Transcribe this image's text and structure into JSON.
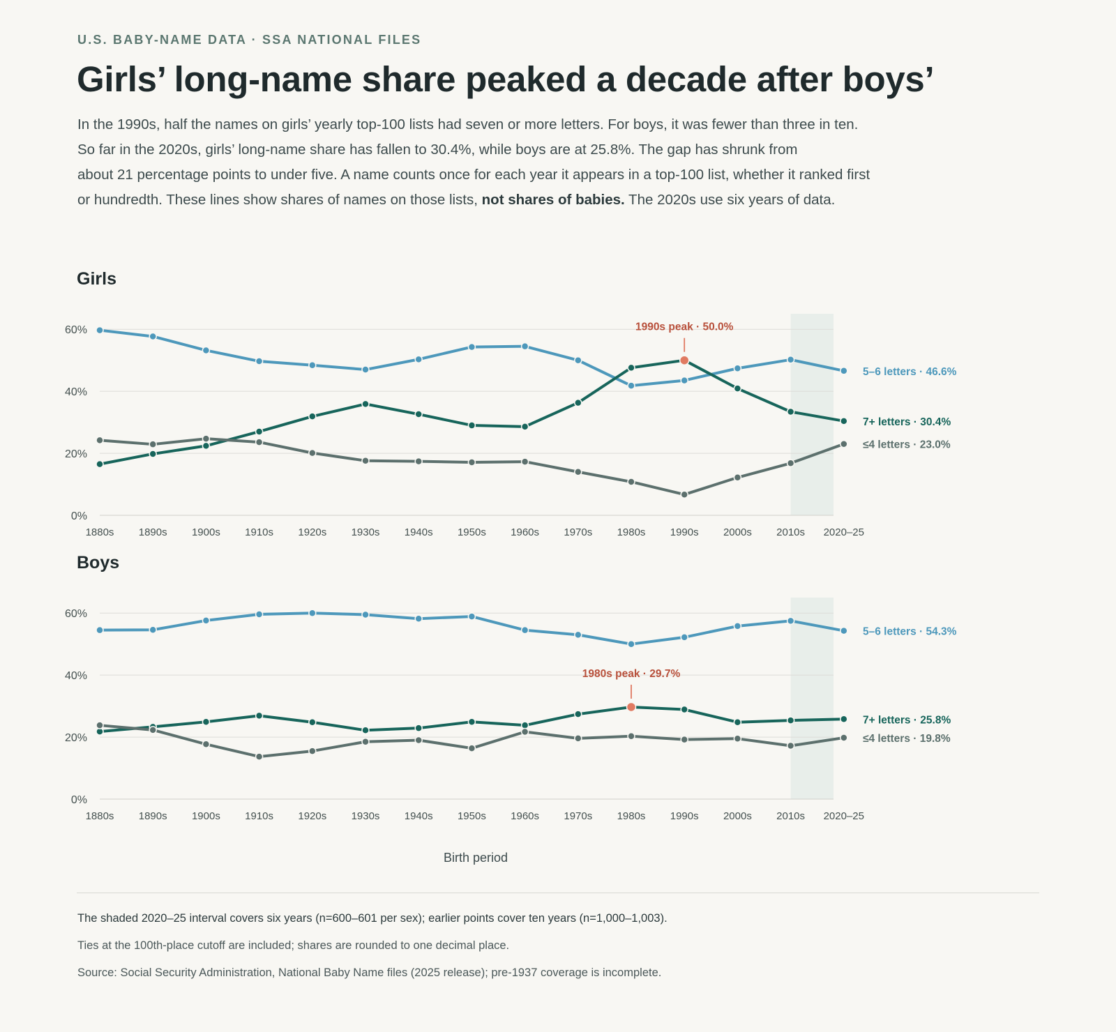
{
  "header": {
    "kicker": "U.S. BABY-NAME DATA · SSA NATIONAL FILES",
    "title": "Girls’ long-name share peaked a decade after boys’",
    "dek_line1": "In the 1990s, half the names on girls’ yearly top-100 lists had seven or more letters. For boys, it was fewer than three in ten.",
    "dek_line2": "So far in the 2020s, girls’ long-name share has fallen to 30.4%, while boys are at 25.8%. The gap has shrunk from",
    "dek_line3": "about 21 percentage points to under five. A name counts once for each year it appears in a top-100 list, whether it ranked first",
    "dek_line4_pre": "or hundredth. These lines show shares of names on those lists,",
    "dek_line4_bold": "not shares of babies.",
    "dek_line4_post": "The 2020s use six years of data."
  },
  "colors": {
    "mid": "#4d98bb",
    "long": "#17655b",
    "short": "#5c706d",
    "accent": "#e07a61",
    "shade": "#e8eeea",
    "grid": "#dcdcd8"
  },
  "chart_data": [
    {
      "type": "line",
      "title": "Girls",
      "x": [
        "1880s",
        "1890s",
        "1900s",
        "1910s",
        "1920s",
        "1930s",
        "1940s",
        "1950s",
        "1960s",
        "1970s",
        "1980s",
        "1990s",
        "2000s",
        "2010s",
        "2020–25"
      ],
      "ylim": [
        0,
        65
      ],
      "yticks": [
        "0%",
        "20%",
        "40%",
        "60%"
      ],
      "shaded_category": "2020–25",
      "series": [
        {
          "key": "mid",
          "label": "5–6 letters · 46.6%",
          "values": [
            59.7,
            57.7,
            53.2,
            49.7,
            48.4,
            47.0,
            50.3,
            54.3,
            54.5,
            50.0,
            41.8,
            43.5,
            47.4,
            50.2,
            46.6
          ]
        },
        {
          "key": "long",
          "label": "7+ letters · 30.4%",
          "values": [
            16.5,
            19.8,
            22.4,
            27.0,
            31.9,
            35.9,
            32.6,
            29.0,
            28.6,
            36.3,
            47.6,
            50.0,
            40.9,
            33.4,
            30.4
          ]
        },
        {
          "key": "short",
          "label": "≤4 letters · 23.0%",
          "values": [
            24.2,
            22.9,
            24.7,
            23.6,
            20.1,
            17.6,
            17.4,
            17.1,
            17.3,
            14.0,
            10.8,
            6.7,
            12.2,
            16.8,
            23.0
          ]
        }
      ],
      "annotation": {
        "text": "1990s peak · 50.0%",
        "series": "long",
        "category": "1990s",
        "value": 50.0
      }
    },
    {
      "type": "line",
      "title": "Boys",
      "x": [
        "1880s",
        "1890s",
        "1900s",
        "1910s",
        "1920s",
        "1930s",
        "1940s",
        "1950s",
        "1960s",
        "1970s",
        "1980s",
        "1990s",
        "2000s",
        "2010s",
        "2020–25"
      ],
      "xlabel": "Birth period",
      "ylim": [
        0,
        65
      ],
      "yticks": [
        "0%",
        "20%",
        "40%",
        "60%"
      ],
      "shaded_category": "2020–25",
      "series": [
        {
          "key": "mid",
          "label": "5–6 letters · 54.3%",
          "values": [
            54.5,
            54.6,
            57.6,
            59.6,
            60.0,
            59.5,
            58.2,
            58.9,
            54.5,
            53.0,
            50.0,
            52.2,
            55.8,
            57.5,
            54.3
          ]
        },
        {
          "key": "long",
          "label": "7+ letters · 25.8%",
          "values": [
            21.8,
            23.3,
            24.9,
            26.9,
            24.8,
            22.2,
            22.9,
            24.9,
            23.8,
            27.4,
            29.7,
            28.9,
            24.8,
            25.4,
            25.8
          ]
        },
        {
          "key": "short",
          "label": "≤4 letters · 19.8%",
          "values": [
            23.8,
            22.3,
            17.7,
            13.7,
            15.5,
            18.5,
            19.0,
            16.4,
            21.7,
            19.6,
            20.3,
            19.2,
            19.5,
            17.2,
            19.8
          ]
        }
      ],
      "annotation": {
        "text": "1980s peak · 29.7%",
        "series": "long",
        "category": "1980s",
        "value": 29.7
      }
    }
  ],
  "notes": {
    "n1": "The shaded 2020–25 interval covers six years (n=600–601 per sex); earlier points cover ten years (n=1,000–1,003).",
    "n2": "Ties at the 100th-place cutoff are included; shares are rounded to one decimal place.",
    "n3": "Source: Social Security Administration, National Baby Name files (2025 release); pre-1937 coverage is incomplete."
  }
}
